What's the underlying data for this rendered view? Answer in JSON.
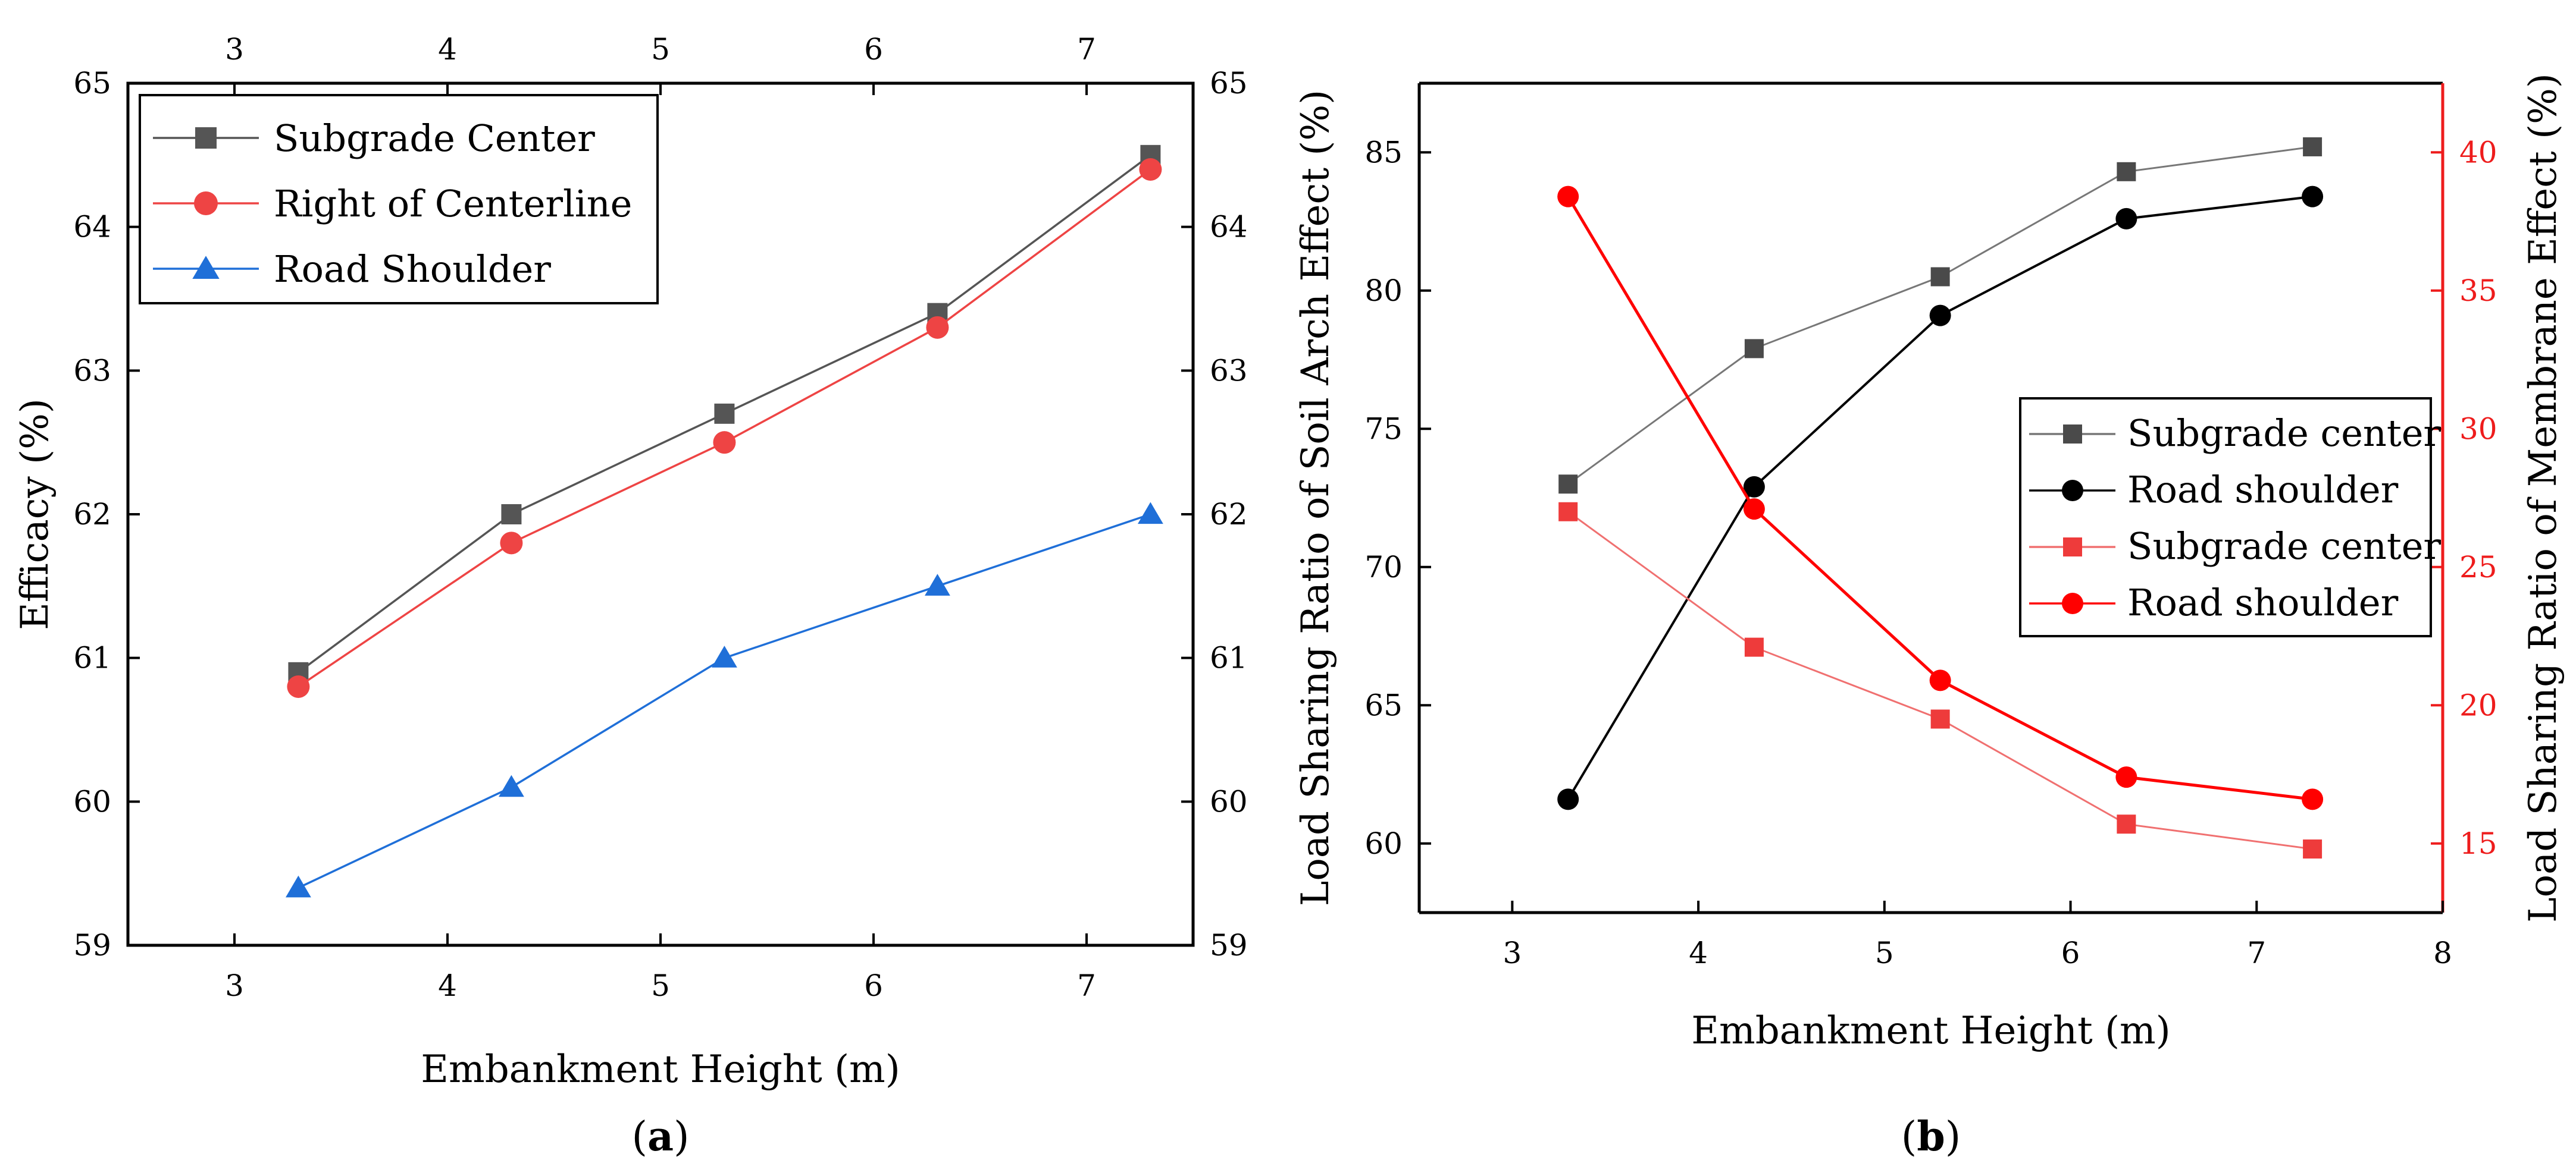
{
  "chart_data": [
    {
      "panel": "a",
      "caption_letter": "a",
      "type": "line",
      "xlabel": "Embankment Height (m)",
      "ylabel": "Efficacy (%)",
      "xlim": [
        2.5,
        7.5
      ],
      "ylim": [
        59,
        65
      ],
      "x_ticks": [
        3,
        4,
        5,
        6,
        7
      ],
      "y_ticks": [
        59,
        60,
        61,
        62,
        63,
        64,
        65
      ],
      "x": [
        3.3,
        4.3,
        5.3,
        6.3,
        7.3
      ],
      "legend_position": "top-left",
      "series": [
        {
          "name": "Subgrade Center",
          "marker": "square",
          "color": "#555555",
          "line_color": "#555555",
          "values": [
            60.9,
            62.0,
            62.7,
            63.4,
            64.5
          ]
        },
        {
          "name": "Right of Centerline",
          "marker": "circle",
          "color": "#ee4444",
          "line_color": "#ee4444",
          "values": [
            60.8,
            61.8,
            62.5,
            63.3,
            64.4
          ]
        },
        {
          "name": "Road Shoulder",
          "marker": "triangle",
          "color": "#1f6fd8",
          "line_color": "#1f6fd8",
          "values": [
            59.4,
            60.1,
            61.0,
            61.5,
            62.0
          ]
        }
      ]
    },
    {
      "panel": "b",
      "caption_letter": "b",
      "type": "line",
      "xlabel": "Embankment Height (m)",
      "ylabel": "Load Sharing Ratio of Soil Arch Effect (%)",
      "y2label": "Load Sharing Ratio of Membrane Effect (%)",
      "xlim": [
        2.5,
        8
      ],
      "ylim": [
        57.5,
        87.5
      ],
      "y2lim": [
        12.5,
        42.5
      ],
      "x_ticks": [
        3,
        4,
        5,
        6,
        7,
        8
      ],
      "y_ticks": [
        60,
        65,
        70,
        75,
        80,
        85
      ],
      "y2_ticks": [
        15,
        20,
        25,
        30,
        35,
        40
      ],
      "x": [
        3.3,
        4.3,
        5.3,
        6.3,
        7.3
      ],
      "legend_position": "center-right",
      "series": [
        {
          "name": "Subgrade center",
          "axis": "left",
          "marker": "square",
          "color": "#4a4a4a",
          "line_color": "#777777",
          "values": [
            73.0,
            77.9,
            80.5,
            84.3,
            85.2
          ]
        },
        {
          "name": "Road shoulder",
          "axis": "left",
          "marker": "circle",
          "color": "#000000",
          "line_color": "#000000",
          "values": [
            61.6,
            72.9,
            79.1,
            82.6,
            83.4
          ]
        },
        {
          "name": "Subgrade center",
          "axis": "right",
          "marker": "square",
          "color": "#ee3b3b",
          "line_color": "#f07070",
          "values": [
            27.0,
            22.1,
            19.5,
            15.7,
            14.8
          ]
        },
        {
          "name": "Road shoulder",
          "axis": "right",
          "marker": "circle",
          "color": "#ff0000",
          "line_color": "#ff0000",
          "values": [
            38.4,
            27.1,
            20.9,
            17.4,
            16.6
          ]
        }
      ]
    }
  ]
}
